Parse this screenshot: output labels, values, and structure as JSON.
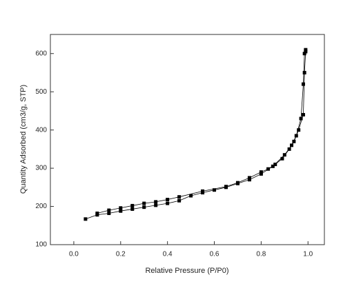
{
  "chart_data": {
    "type": "line",
    "xlabel": "Relative Pressure (P/P0)",
    "ylabel": "Quantity Adsorbed (cm3/g, STP)",
    "xlim": [
      -0.1,
      1.07
    ],
    "ylim": [
      100,
      650
    ],
    "xticks": [
      {
        "value": 0,
        "label": "0.0"
      },
      0.2,
      0.4,
      0.6,
      0.8,
      {
        "value": 1,
        "label": "1.0"
      }
    ],
    "yticks": [
      100,
      200,
      300,
      400,
      500,
      600
    ],
    "series": [
      {
        "color": "#000000",
        "x": [
          0.05,
          0.1,
          0.15,
          0.2,
          0.25,
          0.3,
          0.35,
          0.4,
          0.45,
          0.5,
          0.55,
          0.6,
          0.65,
          0.7,
          0.75,
          0.8,
          0.85,
          0.9,
          0.93,
          0.95,
          0.97,
          0.98,
          0.985,
          0.99
        ],
        "values": [
          167,
          178,
          182,
          188,
          193,
          198,
          203,
          208,
          215,
          228,
          236,
          243,
          250,
          260,
          270,
          285,
          305,
          335,
          360,
          385,
          430,
          520,
          600,
          610
        ]
      },
      {
        "color": "#000000",
        "x": [
          0.99,
          0.985,
          0.98,
          0.96,
          0.94,
          0.92,
          0.89,
          0.86,
          0.83,
          0.8,
          0.75,
          0.7,
          0.65,
          0.55,
          0.45,
          0.4,
          0.35,
          0.3,
          0.25,
          0.2,
          0.15,
          0.1
        ],
        "values": [
          605,
          550,
          440,
          400,
          370,
          350,
          325,
          310,
          298,
          290,
          275,
          262,
          252,
          240,
          225,
          218,
          212,
          208,
          202,
          196,
          190,
          182
        ]
      }
    ]
  }
}
